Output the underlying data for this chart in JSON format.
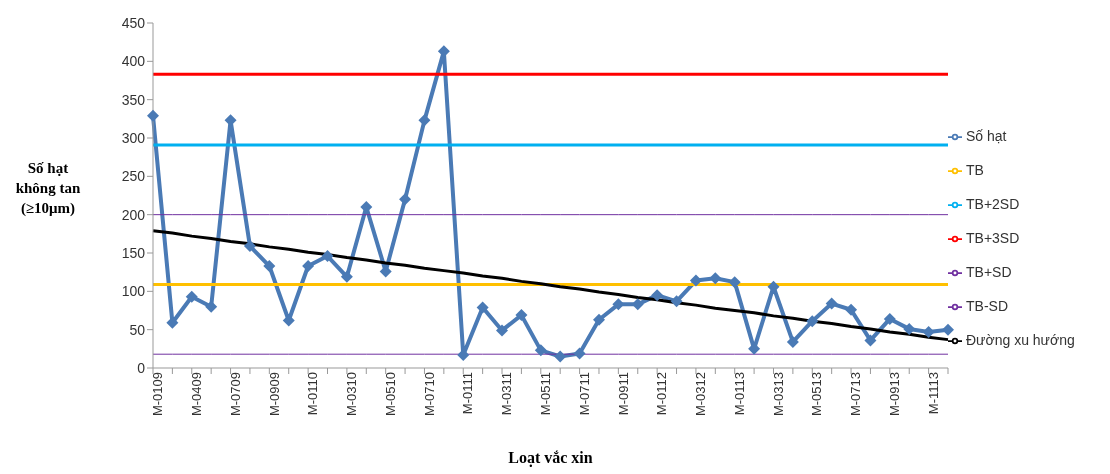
{
  "chart_data": {
    "type": "line",
    "xlabel": "Loạt vắc xin",
    "ylabel": "Số hạt không tan (≥10μm)",
    "categories": [
      "M-0109",
      null,
      "M-0409",
      null,
      "M-0709",
      null,
      "M-0909",
      null,
      "M-0110",
      null,
      "M-0310",
      null,
      "M-0510",
      null,
      "M-0710",
      null,
      "M-0111",
      null,
      "M-0311",
      null,
      "M-0511",
      null,
      "M-0711",
      null,
      "M-0911",
      null,
      "M-0112",
      null,
      "M-0312",
      null,
      "M-0113",
      null,
      "M-0313",
      null,
      "M-0513",
      null,
      "M-0713",
      null,
      "M-0913",
      null,
      "M-1113",
      null
    ],
    "series": [
      {
        "name": "Số hạt",
        "color": "#4a7ab5",
        "marker": "diamond",
        "values": [
          329,
          59,
          93,
          80,
          323,
          159,
          133,
          62,
          133,
          146,
          119,
          210,
          126,
          220,
          323,
          413,
          17,
          79,
          49,
          69,
          23,
          15,
          19,
          63,
          83,
          83,
          95,
          87,
          114,
          117,
          112,
          25,
          106,
          34,
          61,
          84,
          76,
          36,
          64,
          51,
          47,
          50
        ]
      },
      {
        "name": "TB",
        "color": "#ffc000",
        "values": [
          109,
          109,
          109,
          109,
          109,
          109,
          109,
          109,
          109,
          109,
          109,
          109,
          109,
          109,
          109,
          109,
          109,
          109,
          109,
          109,
          109,
          109,
          109,
          109,
          109,
          109,
          109,
          109,
          109,
          109,
          109,
          109,
          109,
          109,
          109,
          109,
          109,
          109,
          109,
          109,
          109,
          109
        ]
      },
      {
        "name": "TB+2SD",
        "color": "#00b0f0",
        "values": [
          291,
          291,
          291,
          291,
          291,
          291,
          291,
          291,
          291,
          291,
          291,
          291,
          291,
          291,
          291,
          291,
          291,
          291,
          291,
          291,
          291,
          291,
          291,
          291,
          291,
          291,
          291,
          291,
          291,
          291,
          291,
          291,
          291,
          291,
          291,
          291,
          291,
          291,
          291,
          291,
          291,
          291
        ]
      },
      {
        "name": "TB+3SD",
        "color": "#ff0000",
        "values": [
          383,
          383,
          383,
          383,
          383,
          383,
          383,
          383,
          383,
          383,
          383,
          383,
          383,
          383,
          383,
          383,
          383,
          383,
          383,
          383,
          383,
          383,
          383,
          383,
          383,
          383,
          383,
          383,
          383,
          383,
          383,
          383,
          383,
          383,
          383,
          383,
          383,
          383,
          383,
          383,
          383,
          383
        ]
      },
      {
        "name": "TB+SD",
        "color": "#7030a0",
        "values": [
          200,
          200,
          200,
          200,
          200,
          200,
          200,
          200,
          200,
          200,
          200,
          200,
          200,
          200,
          200,
          200,
          200,
          200,
          200,
          200,
          200,
          200,
          200,
          200,
          200,
          200,
          200,
          200,
          200,
          200,
          200,
          200,
          200,
          200,
          200,
          200,
          200,
          200,
          200,
          200,
          200,
          200
        ]
      },
      {
        "name": "TB-SD",
        "color": "#7030a0",
        "values": [
          18,
          18,
          18,
          18,
          18,
          18,
          18,
          18,
          18,
          18,
          18,
          18,
          18,
          18,
          18,
          18,
          18,
          18,
          18,
          18,
          18,
          18,
          18,
          18,
          18,
          18,
          18,
          18,
          18,
          18,
          18,
          18,
          18,
          18,
          18,
          18,
          18,
          18,
          18,
          18,
          18,
          18
        ]
      },
      {
        "name": "Đường xu hướng",
        "color": "#000000",
        "values": [
          179,
          176,
          172,
          169,
          165,
          162,
          158,
          155,
          151,
          148,
          144,
          141,
          137,
          134,
          130,
          127,
          124,
          120,
          117,
          113,
          110,
          106,
          103,
          99,
          96,
          92,
          89,
          85,
          82,
          78,
          75,
          72,
          68,
          65,
          61,
          58,
          54,
          51,
          47,
          44,
          40,
          37
        ]
      }
    ],
    "ylim": [
      0,
      450
    ],
    "yticks": [
      0,
      50,
      100,
      150,
      200,
      250,
      300,
      350,
      400,
      450
    ],
    "grid": false,
    "legend": "right"
  }
}
